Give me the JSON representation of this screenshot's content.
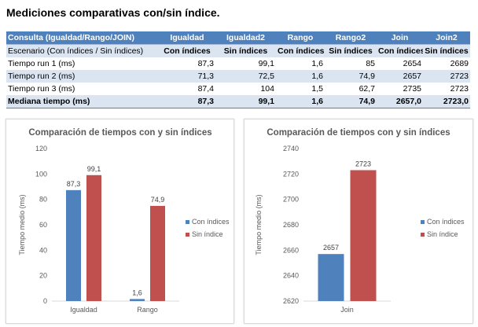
{
  "title": "Mediciones comparativas con/sin índice.",
  "table": {
    "header": [
      "Consulta (Igualdad/Rango/JOIN)",
      "Igualdad",
      "Igualdad2",
      "Rango",
      "Rango2",
      "Join",
      "Join2"
    ],
    "subheader": [
      "Escenario (Con índices / Sin índices)",
      "Con índices",
      "Sin índices",
      "Con índices",
      "Sin índices",
      "Con índices",
      "Sin índices"
    ],
    "rows": [
      [
        "Tiempo run 1 (ms)",
        "87,3",
        "99,1",
        "1,6",
        "85",
        "2654",
        "2689"
      ],
      [
        "Tiempo run 2 (ms)",
        "71,3",
        "72,5",
        "1,6",
        "74,9",
        "2657",
        "2723"
      ],
      [
        "Tiempo run 3 (ms)",
        "87,4",
        "104",
        "1,5",
        "62,7",
        "2735",
        "2723"
      ],
      [
        "Mediana tiempo (ms)",
        "87,3",
        "99,1",
        "1,6",
        "74,9",
        "2657,0",
        "2723,0"
      ]
    ]
  },
  "colors": {
    "con": "#4f81bd",
    "sin": "#c0504d",
    "header": "#4f81bd",
    "band": "#dbe5f1"
  },
  "chart_data": [
    {
      "type": "bar",
      "title": "Comparación de tiempos con y sin índices",
      "ylabel": "Tiempo medio (ms)",
      "xlabel": "",
      "categories": [
        "Igualdad",
        "Rango"
      ],
      "series": [
        {
          "name": "Con índices",
          "values": [
            87.3,
            1.6
          ],
          "labels": [
            "87,3",
            "1,6"
          ]
        },
        {
          "name": "Sin índice",
          "values": [
            99.1,
            74.9
          ],
          "labels": [
            "99,1",
            "74,9"
          ]
        }
      ],
      "ylim": [
        0,
        120
      ],
      "yticks": [
        "0",
        "20",
        "40",
        "60",
        "80",
        "100",
        "120"
      ],
      "legend": "right"
    },
    {
      "type": "bar",
      "title": "Comparación de tiempos con y sin índices",
      "ylabel": "Tiempo medio (ms)",
      "xlabel": "",
      "categories": [
        "Join"
      ],
      "series": [
        {
          "name": "Con índices",
          "values": [
            2657
          ],
          "labels": [
            "2657"
          ]
        },
        {
          "name": "Sin índice",
          "values": [
            2723
          ],
          "labels": [
            "2723"
          ]
        }
      ],
      "ylim": [
        2620,
        2740
      ],
      "yticks": [
        "2620",
        "2640",
        "2660",
        "2680",
        "2700",
        "2720",
        "2740"
      ],
      "legend": "right"
    }
  ]
}
